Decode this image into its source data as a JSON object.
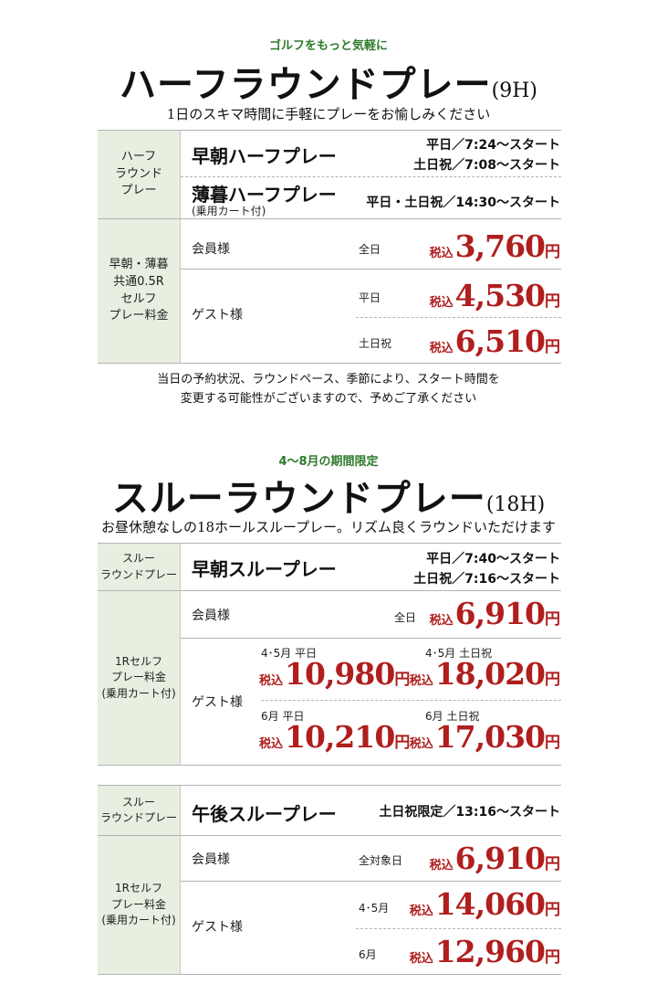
{
  "half": {
    "tagline": "ゴルフをもっと気軽に",
    "title": "ハーフラウンドプレー",
    "holes": "(9H)",
    "subtitle": "1日のスキマ時間に手軽にプレーをお愉しみください",
    "label_top": "ハーフ\nラウンド\nプレー",
    "plan1": {
      "name": "早朝ハーフプレー",
      "time1": "平日／7:24〜スタート",
      "time2": "土日祝／7:08〜スタート"
    },
    "plan2": {
      "name": "薄暮ハーフプレー",
      "note": "(乗用カート付)",
      "time": "平日・土日祝／14:30〜スタート"
    },
    "label_fee": "早朝・薄暮\n共通0.5R\nセルフ\nプレー料金",
    "member": {
      "label": "会員様",
      "day": "全日",
      "tax": "税込",
      "price": "3,760",
      "yen": "円"
    },
    "guest": {
      "label": "ゲスト様",
      "weekday": {
        "day": "平日",
        "tax": "税込",
        "price": "4,530",
        "yen": "円"
      },
      "holiday": {
        "day": "土日祝",
        "tax": "税込",
        "price": "6,510",
        "yen": "円"
      }
    },
    "notice_line1": "当日の予約状況、ラウンドペース、季節により、スタート時間を",
    "notice_line2": "変更する可能性がございますので、予めご了承ください"
  },
  "through": {
    "tagline": "4〜8月の期間限定",
    "title": "スルーラウンドプレー",
    "holes": "(18H)",
    "subtitle": "お昼休憩なしの18ホールスループレー。リズム良くラウンドいただけます",
    "morning": {
      "label_top": "スルー\nラウンドプレー",
      "name": "早朝スループレー",
      "time1": "平日／7:40〜スタート",
      "time2": "土日祝／7:16〜スタート",
      "label_fee": "1Rセルフ\nプレー料金\n(乗用カート付)",
      "member": {
        "label": "会員様",
        "day": "全日",
        "tax": "税込",
        "price": "6,910",
        "yen": "円"
      },
      "guest": {
        "label": "ゲスト様",
        "p1": {
          "day": "4･5月 平日",
          "tax": "税込",
          "price": "10,980",
          "yen": "円"
        },
        "p2": {
          "day": "4･5月 土日祝",
          "tax": "税込",
          "price": "18,020",
          "yen": "円"
        },
        "p3": {
          "day": "6月 平日",
          "tax": "税込",
          "price": "10,210",
          "yen": "円"
        },
        "p4": {
          "day": "6月 土日祝",
          "tax": "税込",
          "price": "17,030",
          "yen": "円"
        }
      }
    },
    "afternoon": {
      "label_top": "スルー\nラウンドプレー",
      "name": "午後スループレー",
      "time": "土日祝限定／13:16〜スタート",
      "label_fee": "1Rセルフ\nプレー料金\n(乗用カート付)",
      "member": {
        "label": "会員様",
        "day": "全対象日",
        "tax": "税込",
        "price": "6,910",
        "yen": "円"
      },
      "guest": {
        "label": "ゲスト様",
        "p1": {
          "day": "4･5月",
          "tax": "税込",
          "price": "14,060",
          "yen": "円"
        },
        "p2": {
          "day": "6月",
          "tax": "税込",
          "price": "12,960",
          "yen": "円"
        }
      }
    }
  },
  "colors": {
    "accent_green": "#2f7a2c",
    "price_red": "#b01e1e",
    "label_bg": "#e8eee0"
  }
}
